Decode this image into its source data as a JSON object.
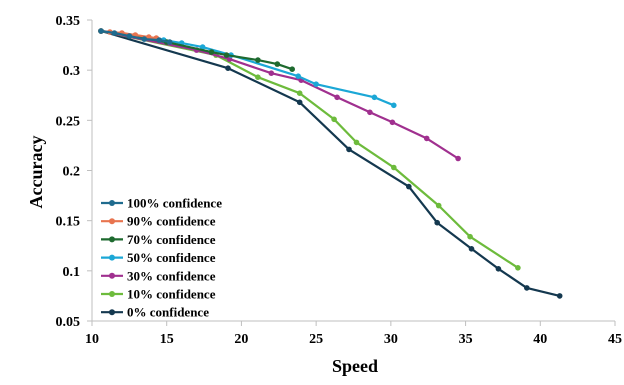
{
  "chart_data": {
    "type": "line",
    "title": "",
    "xlabel": "Speed",
    "ylabel": "Accuracy",
    "xlim": [
      10,
      45
    ],
    "ylim": [
      0.05,
      0.35
    ],
    "xticks": [
      10,
      15,
      20,
      25,
      30,
      35,
      40,
      45
    ],
    "yticks": [
      0.05,
      0.1,
      0.15,
      0.2,
      0.25,
      0.3,
      0.35
    ],
    "ytick_labels": [
      "0.05",
      "0.1",
      "0.15",
      "0.2",
      "0.25",
      "0.3",
      "0.35"
    ],
    "grid": false,
    "legend_position": "bottom-left",
    "series": [
      {
        "name": "100% confidence",
        "color": "#1f6b8e",
        "points": [
          [
            10.6,
            0.339
          ],
          [
            11.5,
            0.337
          ],
          [
            12.5,
            0.334
          ],
          [
            13.5,
            0.331
          ],
          [
            14.5,
            0.33
          ],
          [
            15.2,
            0.328
          ]
        ]
      },
      {
        "name": "90% confidence",
        "color": "#e8744f",
        "points": [
          [
            10.6,
            0.339
          ],
          [
            11.2,
            0.338
          ],
          [
            12.0,
            0.337
          ],
          [
            12.9,
            0.335
          ],
          [
            13.8,
            0.333
          ],
          [
            14.3,
            0.332
          ]
        ]
      },
      {
        "name": "70% confidence",
        "color": "#1e6a2f",
        "points": [
          [
            10.6,
            0.339
          ],
          [
            15.0,
            0.328
          ],
          [
            18.0,
            0.318
          ],
          [
            19.0,
            0.315
          ],
          [
            21.1,
            0.31
          ],
          [
            22.4,
            0.306
          ],
          [
            23.4,
            0.301
          ]
        ]
      },
      {
        "name": "50% confidence",
        "color": "#1ba7d6",
        "points": [
          [
            10.6,
            0.339
          ],
          [
            14.8,
            0.33
          ],
          [
            16.0,
            0.327
          ],
          [
            17.4,
            0.323
          ],
          [
            19.3,
            0.315
          ],
          [
            23.8,
            0.294
          ],
          [
            25.0,
            0.286
          ],
          [
            28.9,
            0.273
          ],
          [
            30.2,
            0.265
          ]
        ]
      },
      {
        "name": "30% confidence",
        "color": "#a0308f",
        "points": [
          [
            10.6,
            0.339
          ],
          [
            17.0,
            0.32
          ],
          [
            19.2,
            0.311
          ],
          [
            22.0,
            0.297
          ],
          [
            24.0,
            0.29
          ],
          [
            26.4,
            0.273
          ],
          [
            28.6,
            0.258
          ],
          [
            30.1,
            0.248
          ],
          [
            32.4,
            0.232
          ],
          [
            34.5,
            0.212
          ]
        ]
      },
      {
        "name": "10% confidence",
        "color": "#6dbb3c",
        "points": [
          [
            10.6,
            0.339
          ],
          [
            18.3,
            0.315
          ],
          [
            21.1,
            0.293
          ],
          [
            23.9,
            0.277
          ],
          [
            26.2,
            0.251
          ],
          [
            27.7,
            0.228
          ],
          [
            30.2,
            0.203
          ],
          [
            33.2,
            0.165
          ],
          [
            35.3,
            0.134
          ],
          [
            38.5,
            0.103
          ]
        ]
      },
      {
        "name": "0% confidence",
        "color": "#14384f",
        "points": [
          [
            10.6,
            0.339
          ],
          [
            19.1,
            0.302
          ],
          [
            23.9,
            0.268
          ],
          [
            27.2,
            0.221
          ],
          [
            31.2,
            0.184
          ],
          [
            33.1,
            0.148
          ],
          [
            35.4,
            0.122
          ],
          [
            37.2,
            0.102
          ],
          [
            39.1,
            0.083
          ],
          [
            41.3,
            0.075
          ]
        ]
      }
    ]
  }
}
